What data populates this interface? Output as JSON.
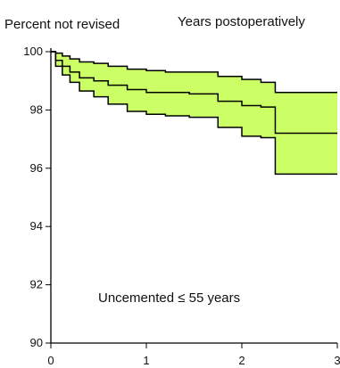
{
  "chart_data": {
    "type": "line",
    "y_label": "Percent not revised",
    "x_label": "Years postoperatively",
    "annotation": "Uncemented ≤ 55 years",
    "xlim": [
      0,
      3
    ],
    "ylim": [
      90,
      100
    ],
    "x_ticks": [
      0,
      1,
      2,
      3
    ],
    "y_ticks": [
      90,
      92,
      94,
      96,
      98,
      100
    ],
    "fill_color": "#ccff66",
    "line_color": "#000000",
    "series": [
      {
        "role": "upper-ci",
        "x": [
          0,
          0.05,
          0.12,
          0.2,
          0.3,
          0.45,
          0.6,
          0.8,
          1.0,
          1.2,
          1.45,
          1.75,
          2.0,
          2.2,
          2.35,
          2.45,
          2.6,
          2.8,
          3.0
        ],
        "y": [
          100,
          99.95,
          99.85,
          99.75,
          99.65,
          99.6,
          99.5,
          99.4,
          99.35,
          99.3,
          99.3,
          99.15,
          99.05,
          98.95,
          98.6,
          98.6,
          98.6,
          98.6,
          98.6
        ]
      },
      {
        "role": "estimate",
        "x": [
          0,
          0.05,
          0.12,
          0.2,
          0.3,
          0.45,
          0.6,
          0.8,
          1.0,
          1.2,
          1.45,
          1.75,
          2.0,
          2.2,
          2.35,
          2.45,
          2.6,
          2.8,
          3.0
        ],
        "y": [
          100,
          99.7,
          99.5,
          99.3,
          99.1,
          99.0,
          98.85,
          98.7,
          98.6,
          98.6,
          98.55,
          98.3,
          98.15,
          98.1,
          97.2,
          97.2,
          97.2,
          97.2,
          97.2
        ]
      },
      {
        "role": "lower-ci",
        "x": [
          0,
          0.05,
          0.12,
          0.2,
          0.3,
          0.45,
          0.6,
          0.8,
          1.0,
          1.2,
          1.45,
          1.75,
          2.0,
          2.2,
          2.35,
          2.45,
          2.6,
          2.8,
          3.0
        ],
        "y": [
          100,
          99.5,
          99.2,
          98.95,
          98.65,
          98.45,
          98.2,
          97.95,
          97.85,
          97.8,
          97.75,
          97.4,
          97.1,
          97.05,
          95.8,
          95.8,
          95.8,
          95.8,
          95.8
        ]
      }
    ]
  }
}
